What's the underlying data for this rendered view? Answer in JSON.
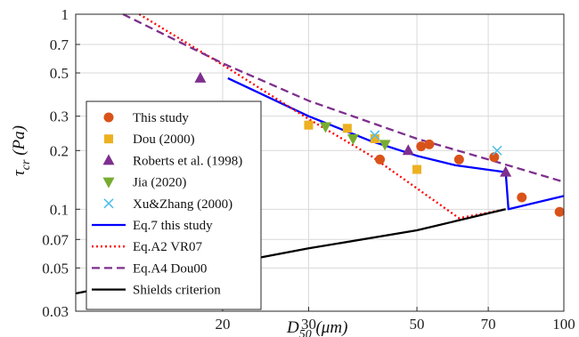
{
  "chart_data": {
    "type": "scatter",
    "x_scale": "log",
    "y_scale": "log",
    "xlim": [
      10,
      100
    ],
    "ylim": [
      0.03,
      1
    ],
    "x_ticks": [
      20,
      30,
      50,
      70,
      100
    ],
    "x_tick_labels": [
      "20",
      "30",
      "50",
      "70",
      "100"
    ],
    "y_ticks": [
      0.03,
      0.05,
      0.07,
      0.1,
      0.2,
      0.3,
      0.5,
      0.7,
      1
    ],
    "y_tick_labels": [
      "0.03",
      "0.05",
      "0.07",
      "0.1",
      "0.2",
      "0.3",
      "0.5",
      "0.7",
      "1"
    ],
    "xlabel": {
      "main": "D",
      "sub": "50",
      "unit": " (μm)"
    },
    "ylabel": {
      "main": "τ",
      "sub": "cr",
      "unit": " (Pa)"
    },
    "grid": true,
    "legend_position": "bottom-left",
    "series": [
      {
        "name": "This study",
        "kind": "marker",
        "marker": "circle",
        "color": "#d95319",
        "x": [
          42,
          51,
          53,
          61,
          72,
          82,
          98
        ],
        "y": [
          0.18,
          0.21,
          0.215,
          0.18,
          0.185,
          0.115,
          0.097
        ]
      },
      {
        "name": "Dou (2000)",
        "kind": "marker",
        "marker": "square",
        "color": "#edb120",
        "x": [
          30,
          36,
          41,
          50
        ],
        "y": [
          0.27,
          0.26,
          0.23,
          0.16
        ]
      },
      {
        "name": "Roberts et al. (1998)",
        "kind": "marker",
        "marker": "triangle-up",
        "color": "#7e2f8e",
        "x": [
          18,
          48,
          76
        ],
        "y": [
          0.47,
          0.2,
          0.155
        ]
      },
      {
        "name": "Jia (2020)",
        "kind": "marker",
        "marker": "triangle-down",
        "color": "#77ac30",
        "x": [
          32.5,
          37,
          43
        ],
        "y": [
          0.265,
          0.23,
          0.215
        ]
      },
      {
        "name": "Xu&Zhang (2000)",
        "kind": "marker",
        "marker": "x",
        "color": "#4dbeee",
        "x": [
          41,
          73
        ],
        "y": [
          0.24,
          0.2
        ]
      },
      {
        "name": "Eq.7 this study",
        "kind": "line",
        "dash": "solid",
        "color": "#0000ff",
        "x": [
          20.5,
          30,
          40,
          50,
          60,
          76,
          77,
          100
        ],
        "y": [
          0.47,
          0.3,
          0.225,
          0.188,
          0.168,
          0.155,
          0.1,
          0.117
        ]
      },
      {
        "name": "Eq.A2 VR07",
        "kind": "line",
        "dash": "dotted",
        "color": "#ff0000",
        "x": [
          13.5,
          20,
          30,
          40,
          50,
          61,
          76
        ],
        "y": [
          1.0,
          0.55,
          0.29,
          0.19,
          0.128,
          0.09,
          0.1
        ]
      },
      {
        "name": "Eq.A4 Dou00",
        "kind": "line",
        "dash": "dashed",
        "color": "#7e2f8e",
        "x": [
          12.5,
          20,
          30,
          50,
          70,
          100
        ],
        "y": [
          1.0,
          0.56,
          0.36,
          0.23,
          0.18,
          0.138
        ]
      },
      {
        "name": "Shields criterion",
        "kind": "line",
        "dash": "solid",
        "color": "#000000",
        "x": [
          10,
          20,
          30,
          50,
          76
        ],
        "y": [
          0.037,
          0.052,
          0.063,
          0.078,
          0.1
        ]
      }
    ]
  }
}
